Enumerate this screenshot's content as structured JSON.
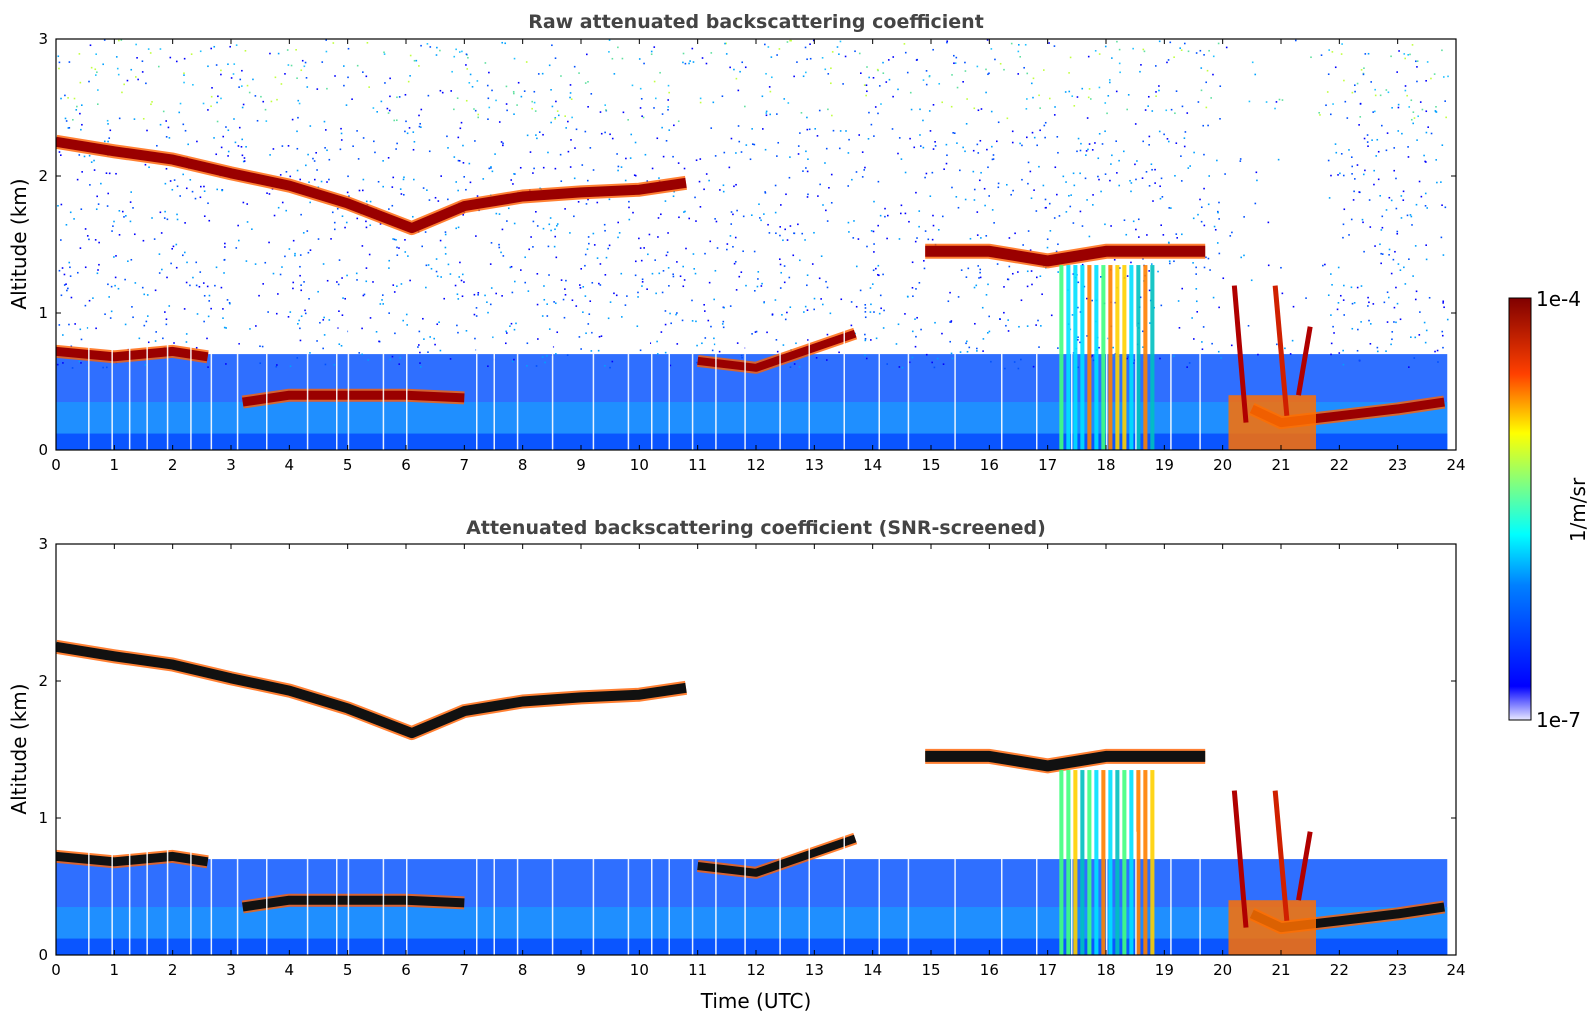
{
  "chart_data": [
    {
      "type": "heatmap",
      "title": "Raw attenuated backscattering coefficient",
      "xlabel": "",
      "ylabel": "Altitude (km)",
      "xlim": [
        0,
        24
      ],
      "ylim": [
        0,
        3
      ],
      "xticks": [
        "0",
        "1",
        "2",
        "3",
        "4",
        "5",
        "6",
        "7",
        "8",
        "9",
        "10",
        "11",
        "12",
        "13",
        "14",
        "15",
        "16",
        "17",
        "18",
        "19",
        "20",
        "21",
        "22",
        "23",
        "24"
      ],
      "yticks": [
        "0",
        "1",
        "2",
        "3"
      ],
      "features": {
        "upper_layer_km": [
          [
            0,
            2.25
          ],
          [
            1,
            2.18
          ],
          [
            2,
            2.12
          ],
          [
            3,
            2.02
          ],
          [
            4,
            1.93
          ],
          [
            5,
            1.8
          ],
          [
            6.1,
            1.62
          ],
          [
            7,
            1.78
          ],
          [
            8,
            1.85
          ],
          [
            9,
            1.88
          ],
          [
            10,
            1.9
          ],
          [
            10.8,
            1.95
          ]
        ],
        "mid_layer_km": [
          [
            14.9,
            1.45
          ],
          [
            16,
            1.45
          ],
          [
            17,
            1.38
          ],
          [
            18,
            1.45
          ],
          [
            19,
            1.45
          ],
          [
            19.7,
            1.45
          ]
        ],
        "low_cloud_km": [
          [
            0,
            0.72
          ],
          [
            1,
            0.68
          ],
          [
            2,
            0.72
          ],
          [
            2.6,
            0.68
          ],
          [
            3.2,
            0.35
          ],
          [
            4,
            0.4
          ],
          [
            5,
            0.4
          ],
          [
            6,
            0.4
          ],
          [
            7,
            0.38
          ],
          [
            11,
            0.65
          ],
          [
            12,
            0.6
          ],
          [
            13.7,
            0.85
          ],
          [
            20.5,
            0.3
          ],
          [
            21,
            0.2
          ],
          [
            22,
            0.25
          ],
          [
            23,
            0.3
          ],
          [
            23.8,
            0.35
          ]
        ]
      }
    },
    {
      "type": "heatmap",
      "title": "Attenuated backscattering coefficient (SNR-screened)",
      "xlabel": "Time (UTC)",
      "ylabel": "Altitude (km)",
      "xlim": [
        0,
        24
      ],
      "ylim": [
        0,
        3
      ],
      "xticks": [
        "0",
        "1",
        "2",
        "3",
        "4",
        "5",
        "6",
        "7",
        "8",
        "9",
        "10",
        "11",
        "12",
        "13",
        "14",
        "15",
        "16",
        "17",
        "18",
        "19",
        "20",
        "21",
        "22",
        "23",
        "24"
      ],
      "yticks": [
        "0",
        "1",
        "2",
        "3"
      ]
    }
  ],
  "colorbar": {
    "label": "1/m/sr",
    "max_label": "1e-4",
    "min_label": "1e-7",
    "scale": "log",
    "range": [
      1e-07,
      0.0001
    ]
  }
}
